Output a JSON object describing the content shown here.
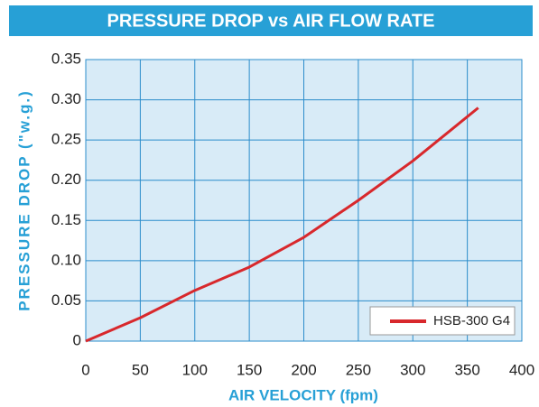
{
  "chart_data": {
    "type": "line",
    "title": "PRESSURE DROP vs AIR FLOW RATE",
    "x_label": "AIR VELOCITY (fpm)",
    "y_label": "PRESSURE DROP (\"w.g.)",
    "x": [
      0,
      50,
      100,
      150,
      200,
      250,
      300,
      360
    ],
    "series": [
      {
        "name": "HSB-300 G4",
        "color": "#d8282c",
        "values": [
          0,
          0.029,
          0.063,
          0.092,
          0.129,
          0.175,
          0.224,
          0.29
        ]
      }
    ],
    "xlim": [
      0,
      400
    ],
    "xticks": [
      0,
      50,
      100,
      150,
      200,
      250,
      300,
      350,
      400
    ],
    "ylim": [
      0,
      0.35
    ],
    "yticks": [
      0,
      0.05,
      {
        "value": 0.1,
        "label": "0.10"
      },
      0.15,
      {
        "value": 0.2,
        "label": "0.20"
      },
      0.25,
      {
        "value": 0.3,
        "label": "0.30"
      },
      0.35
    ],
    "grid": true,
    "legend": "lower right"
  }
}
